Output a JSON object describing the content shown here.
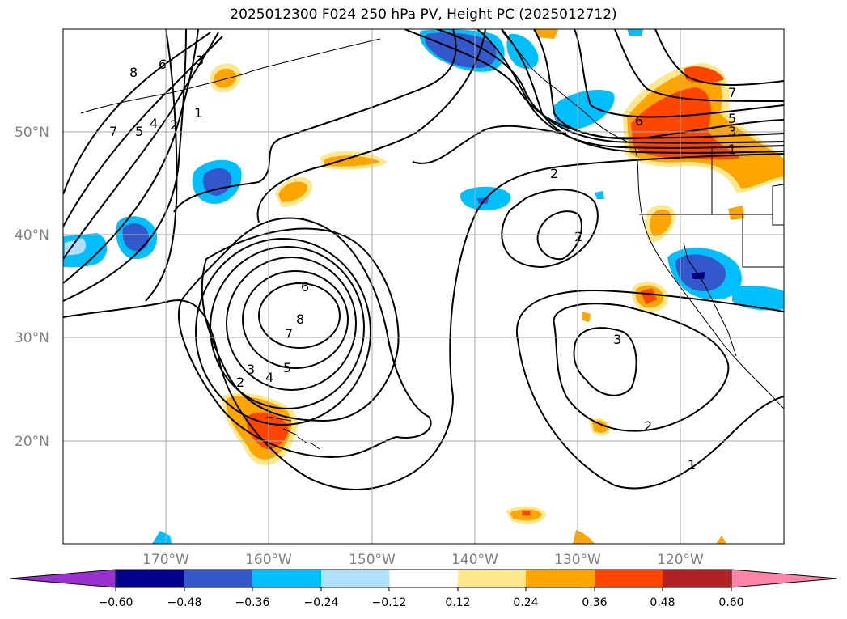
{
  "title": "2025012300 F024 250 hPa PV, Height PC (2025012712)",
  "lat_labels": [
    "50°N",
    "40°N",
    "30°N",
    "20°N"
  ],
  "lon_labels": [
    "170°W",
    "160°W",
    "150°W",
    "140°W",
    "130°W",
    "120°W"
  ],
  "contour_labels": [
    "8",
    "6",
    "3",
    "7",
    "5",
    "4",
    "2",
    "1",
    "7",
    "5",
    "3",
    "1",
    "6",
    "2",
    "2",
    "6",
    "8",
    "7",
    "5",
    "4",
    "3",
    "2",
    "3",
    "2",
    "1"
  ],
  "colorbar": {
    "ticks": [
      "−0.60",
      "−0.48",
      "−0.36",
      "−0.24",
      "−0.12",
      "0.12",
      "0.24",
      "0.36",
      "0.48",
      "0.60"
    ],
    "colors": [
      "#9b30d0",
      "#00008b",
      "#3358cc",
      "#00bfff",
      "#b0e0ff",
      "#ffffff",
      "#ffe88c",
      "#ffa500",
      "#ff4500",
      "#b22222",
      "#ff85a8"
    ]
  }
}
